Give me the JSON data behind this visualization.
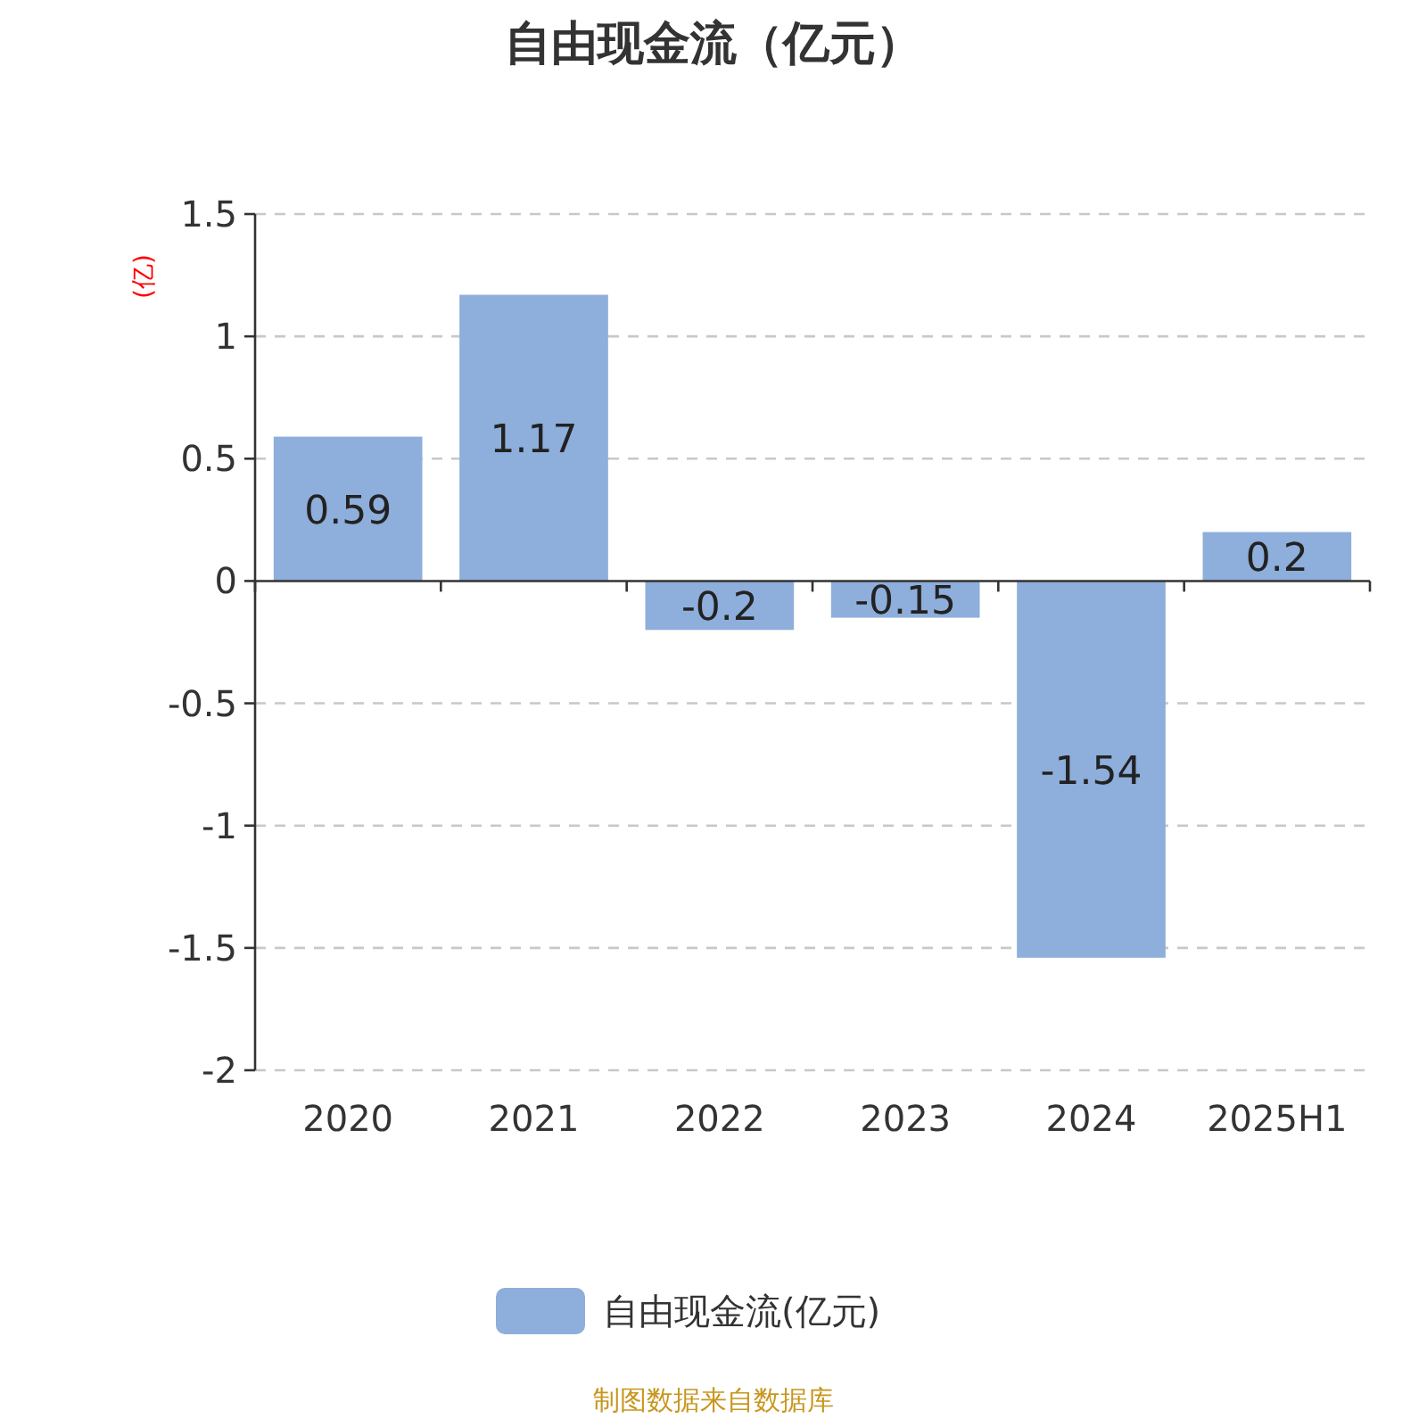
{
  "chart_data": {
    "type": "bar",
    "title": "自由现金流（亿元）",
    "ylabel": "(亿)",
    "categories": [
      "2020",
      "2021",
      "2022",
      "2023",
      "2024",
      "2025H1"
    ],
    "series": [
      {
        "name": "自由现金流(亿元)",
        "color": "#8eaedb",
        "values": [
          0.59,
          1.17,
          -0.2,
          -0.15,
          -1.54,
          0.2
        ]
      }
    ],
    "ylim": [
      -2,
      1.5
    ],
    "yticks": [
      -2,
      -1.5,
      -1,
      -0.5,
      0,
      0.5,
      1,
      1.5
    ],
    "grid": "y",
    "legend": "bottom",
    "data_labels": true,
    "annotations": [
      "制图数据来自数据库"
    ]
  }
}
